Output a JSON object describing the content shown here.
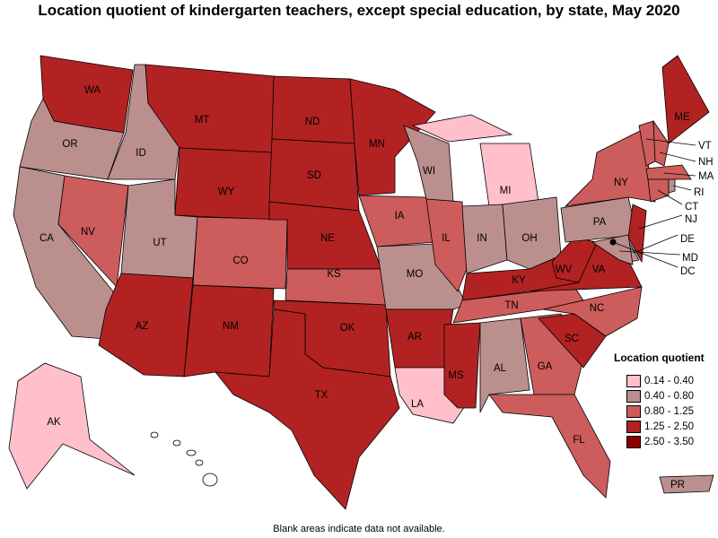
{
  "title": "Location quotient of kindergarten teachers, except special education, by state, May 2020",
  "note": "Blank areas indicate data not available.",
  "legend": {
    "title": "Location quotient",
    "items": [
      {
        "label": "0.14 - 0.40",
        "color": "#FFC0CB"
      },
      {
        "label": "0.40 - 0.80",
        "color": "#BC8F8F"
      },
      {
        "label": "0.80 - 1.25",
        "color": "#CD5C5C"
      },
      {
        "label": "1.25 - 2.50",
        "color": "#B22222"
      },
      {
        "label": "2.50 - 3.50",
        "color": "#8B0000"
      }
    ]
  },
  "blank_color": "#FFFFFF",
  "states": [
    {
      "code": "WA",
      "bin": 3
    },
    {
      "code": "OR",
      "bin": 1
    },
    {
      "code": "CA",
      "bin": 1
    },
    {
      "code": "NV",
      "bin": 2
    },
    {
      "code": "ID",
      "bin": 1
    },
    {
      "code": "MT",
      "bin": 3
    },
    {
      "code": "WY",
      "bin": 3
    },
    {
      "code": "UT",
      "bin": 1
    },
    {
      "code": "AZ",
      "bin": 3
    },
    {
      "code": "CO",
      "bin": 2
    },
    {
      "code": "NM",
      "bin": 3
    },
    {
      "code": "ND",
      "bin": 3
    },
    {
      "code": "SD",
      "bin": 3
    },
    {
      "code": "NE",
      "bin": 3
    },
    {
      "code": "KS",
      "bin": 2
    },
    {
      "code": "OK",
      "bin": 3
    },
    {
      "code": "TX",
      "bin": 3
    },
    {
      "code": "MN",
      "bin": 3
    },
    {
      "code": "IA",
      "bin": 2
    },
    {
      "code": "MO",
      "bin": 1
    },
    {
      "code": "AR",
      "bin": 3
    },
    {
      "code": "LA",
      "bin": 0
    },
    {
      "code": "WI",
      "bin": 1
    },
    {
      "code": "IL",
      "bin": 2
    },
    {
      "code": "MI",
      "bin": 0
    },
    {
      "code": "IN",
      "bin": 1
    },
    {
      "code": "OH",
      "bin": 1
    },
    {
      "code": "KY",
      "bin": 3
    },
    {
      "code": "TN",
      "bin": 2
    },
    {
      "code": "MS",
      "bin": 3
    },
    {
      "code": "AL",
      "bin": 1
    },
    {
      "code": "GA",
      "bin": 2
    },
    {
      "code": "FL",
      "bin": 2
    },
    {
      "code": "SC",
      "bin": 3
    },
    {
      "code": "NC",
      "bin": 2
    },
    {
      "code": "VA",
      "bin": 3
    },
    {
      "code": "WV",
      "bin": 3
    },
    {
      "code": "PA",
      "bin": 1
    },
    {
      "code": "NY",
      "bin": 2
    },
    {
      "code": "NJ",
      "bin": 3
    },
    {
      "code": "DE",
      "bin": 1
    },
    {
      "code": "MD",
      "bin": 1
    },
    {
      "code": "DC",
      "bin": 4
    },
    {
      "code": "VT",
      "bin": 2
    },
    {
      "code": "NH",
      "bin": 2
    },
    {
      "code": "MA",
      "bin": 2
    },
    {
      "code": "CT",
      "bin": 2
    },
    {
      "code": "RI",
      "bin": 1
    },
    {
      "code": "ME",
      "bin": 3
    },
    {
      "code": "AK",
      "bin": 0
    },
    {
      "code": "HI",
      "bin": null
    },
    {
      "code": "PR",
      "bin": 1
    }
  ]
}
